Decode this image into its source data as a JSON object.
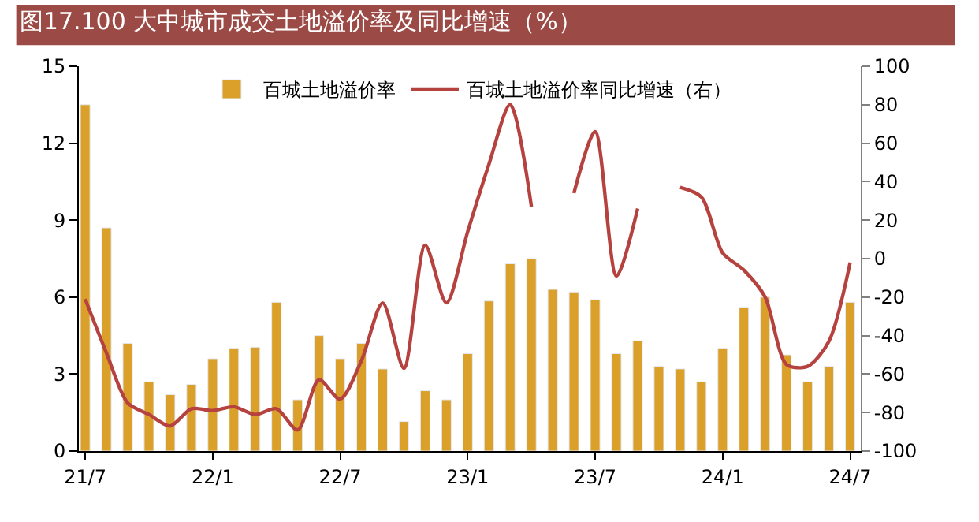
{
  "chart_data": {
    "type": "bar",
    "title": "图17.100 大中城市成交土地溢价率及同比增速（%）",
    "categories": [
      "21/7",
      null,
      null,
      null,
      null,
      null,
      "22/1",
      null,
      null,
      null,
      null,
      null,
      "22/7",
      null,
      null,
      null,
      null,
      null,
      "23/1",
      null,
      null,
      null,
      null,
      null,
      "23/7",
      null,
      null,
      null,
      null,
      null,
      "24/1",
      null,
      null,
      null,
      null,
      null,
      "24/7"
    ],
    "series": [
      {
        "name": "百城土地溢价率",
        "color": "#dba02a",
        "values": [
          13.5,
          8.7,
          4.2,
          2.7,
          2.2,
          2.6,
          3.6,
          4.0,
          4.05,
          5.8,
          2.0,
          4.5,
          3.6,
          4.2,
          3.2,
          1.15,
          2.35,
          2.0,
          3.8,
          5.85,
          7.3,
          7.5,
          6.3,
          6.2,
          5.9,
          3.8,
          4.3,
          3.3,
          3.2,
          2.7,
          4.0,
          5.6,
          6.0,
          3.75,
          2.7,
          3.3,
          5.8
        ]
      },
      {
        "name": "百城土地溢价率同比增速（右）",
        "type": "line",
        "axis": "y2",
        "color": "#b5423f",
        "values": [
          -21,
          -49,
          -75,
          -81,
          -87,
          -78,
          -79,
          -77,
          -81,
          -78,
          -89,
          -63,
          -73,
          -53,
          -23,
          -57,
          7,
          -23,
          14,
          49,
          80,
          27,
          null,
          34,
          66,
          -9,
          26,
          null,
          37,
          32,
          3,
          -6,
          -20,
          -55,
          -56,
          -43,
          -2
        ]
      }
    ],
    "ylim": [
      0,
      15
    ],
    "yticks": [
      0,
      3,
      6,
      9,
      12,
      15
    ],
    "y2lim": [
      -100,
      100
    ],
    "y2ticks": [
      -100,
      -80,
      -60,
      -40,
      -20,
      0,
      20,
      40,
      60,
      80,
      100
    ],
    "legend": "top",
    "marker": "none",
    "line_style": "solid"
  }
}
